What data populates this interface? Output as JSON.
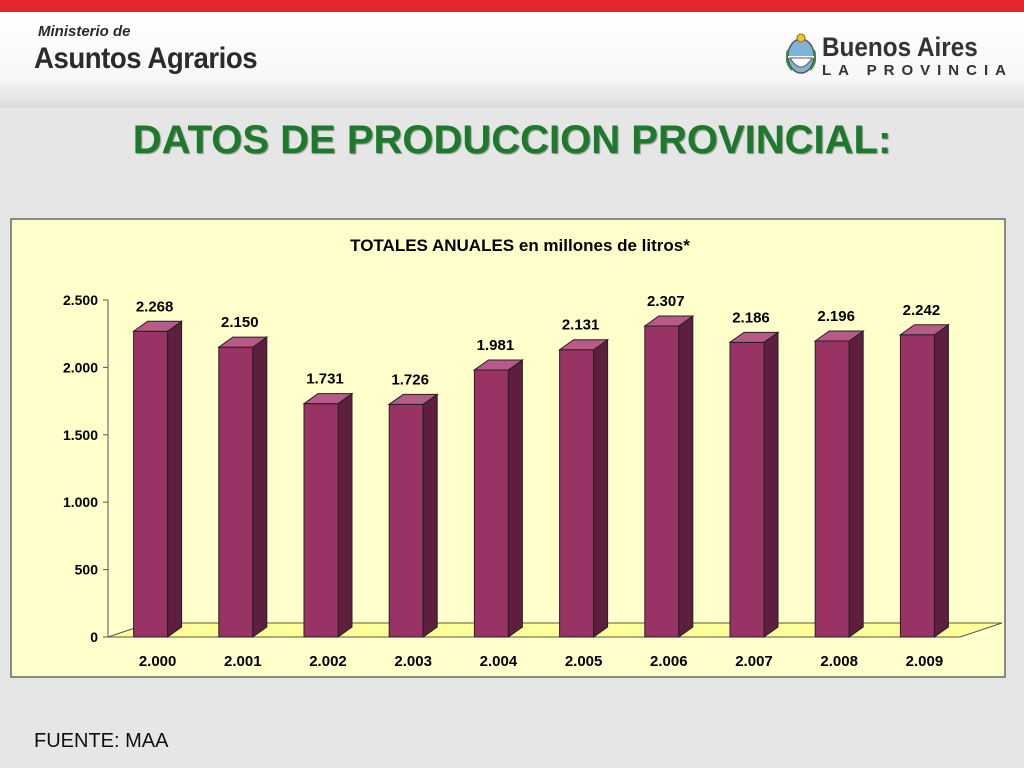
{
  "header": {
    "ministry_line1": "Ministerio de",
    "ministry_line2": "Asuntos Agrarios",
    "province_title": "Buenos Aires",
    "province_sub": "LA PROVINCIA"
  },
  "slide_title": "DATOS DE PRODUCCION PROVINCIAL:",
  "source": "FUENTE: MAA",
  "colors": {
    "header_stripe": "#e5262b",
    "title": "#1d7a2c",
    "plot_bg": "#ffffcc",
    "bar_front": "#993366",
    "bar_side": "#5e1e3e",
    "bar_top": "#b85a88"
  },
  "chart_data": {
    "type": "bar",
    "title": "TOTALES ANUALES en millones de litros*",
    "categories": [
      "2.000",
      "2.001",
      "2.002",
      "2.003",
      "2.004",
      "2.005",
      "2.006",
      "2.007",
      "2.008",
      "2.009"
    ],
    "values": [
      2268,
      2150,
      1731,
      1726,
      1981,
      2131,
      2307,
      2186,
      2196,
      2242
    ],
    "data_labels": [
      "2.268",
      "2.150",
      "1.731",
      "1.726",
      "1.981",
      "2.131",
      "2.307",
      "2.186",
      "2.196",
      "2.242"
    ],
    "ylim": [
      0,
      2500
    ],
    "yticks": [
      0,
      500,
      1000,
      1500,
      2000,
      2500
    ],
    "ytick_labels": [
      "0",
      "500",
      "1.000",
      "1.500",
      "2.000",
      "2.500"
    ],
    "legend": "none",
    "grid": false,
    "three_d": true
  }
}
